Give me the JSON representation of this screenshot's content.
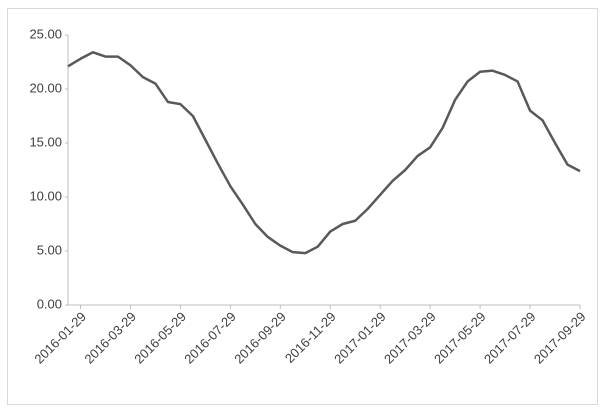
{
  "chart_data": {
    "type": "line",
    "categories": [
      null,
      "2016-01-29",
      null,
      null,
      null,
      "2016-03-29",
      null,
      null,
      null,
      "2016-05-29",
      null,
      null,
      null,
      "2016-07-29",
      null,
      null,
      null,
      "2016-09-29",
      null,
      null,
      null,
      "2016-11-29",
      null,
      null,
      null,
      "2017-01-29",
      null,
      null,
      null,
      "2017-03-29",
      null,
      null,
      null,
      "2017-05-29",
      null,
      null,
      null,
      "2017-07-29",
      null,
      null,
      null,
      "2017-09-29"
    ],
    "series": [
      {
        "color": "#595959",
        "values": [
          22.1,
          22.8,
          23.4,
          23.0,
          23.0,
          22.2,
          21.1,
          20.5,
          18.8,
          18.6,
          17.5,
          15.3,
          13.1,
          11.0,
          9.3,
          7.5,
          6.3,
          5.5,
          4.9,
          4.8,
          5.4,
          6.8,
          7.5,
          7.8,
          8.9,
          10.2,
          11.5,
          12.5,
          13.8,
          14.6,
          16.4,
          19.0,
          20.7,
          21.6,
          21.7,
          21.3,
          20.7,
          18.0,
          17.1,
          15.0,
          13.0,
          12.4
        ]
      }
    ],
    "ylim": [
      0,
      25
    ],
    "yticks": [
      {
        "value": 0,
        "label": "0.00"
      },
      {
        "value": 5,
        "label": "5.00"
      },
      {
        "value": 10,
        "label": "10.00"
      },
      {
        "value": 15,
        "label": "15.00"
      },
      {
        "value": 20,
        "label": "20.00"
      },
      {
        "value": 25,
        "label": "25.00"
      }
    ]
  }
}
